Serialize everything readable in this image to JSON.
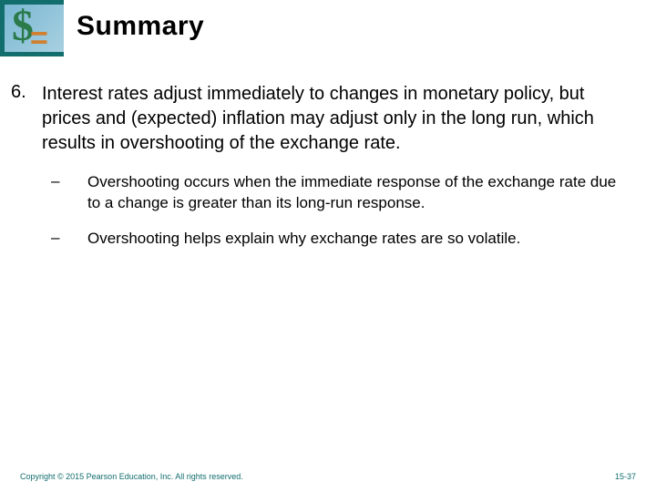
{
  "header": {
    "title": "Summary",
    "icon": {
      "border_color": "#126d6d",
      "bg_gradient_start": "#7ab8d4",
      "bg_gradient_end": "#a8d0e0",
      "dollar_color": "#2a7a4a",
      "equals_color": "#d08030"
    }
  },
  "content": {
    "item_number": "6.",
    "item_text": "Interest rates adjust immediately to changes in monetary policy, but prices and (expected) inflation may adjust only in the long run, which results in overshooting of the exchange rate.",
    "sub_items": [
      {
        "dash": "–",
        "text": "Overshooting occurs when the immediate response of the exchange rate due to a change is greater than its long-run response."
      },
      {
        "dash": "–",
        "text": "Overshooting helps explain why exchange rates are so volatile."
      }
    ]
  },
  "footer": {
    "copyright": "Copyright © 2015 Pearson Education, Inc. All rights reserved.",
    "page": "15-37"
  },
  "typography": {
    "title_fontsize": 30,
    "main_fontsize": 20,
    "sub_fontsize": 17,
    "footer_fontsize": 9,
    "font_family": "Verdana"
  },
  "colors": {
    "background": "#ffffff",
    "text": "#000000",
    "footer_text": "#126d6d"
  }
}
